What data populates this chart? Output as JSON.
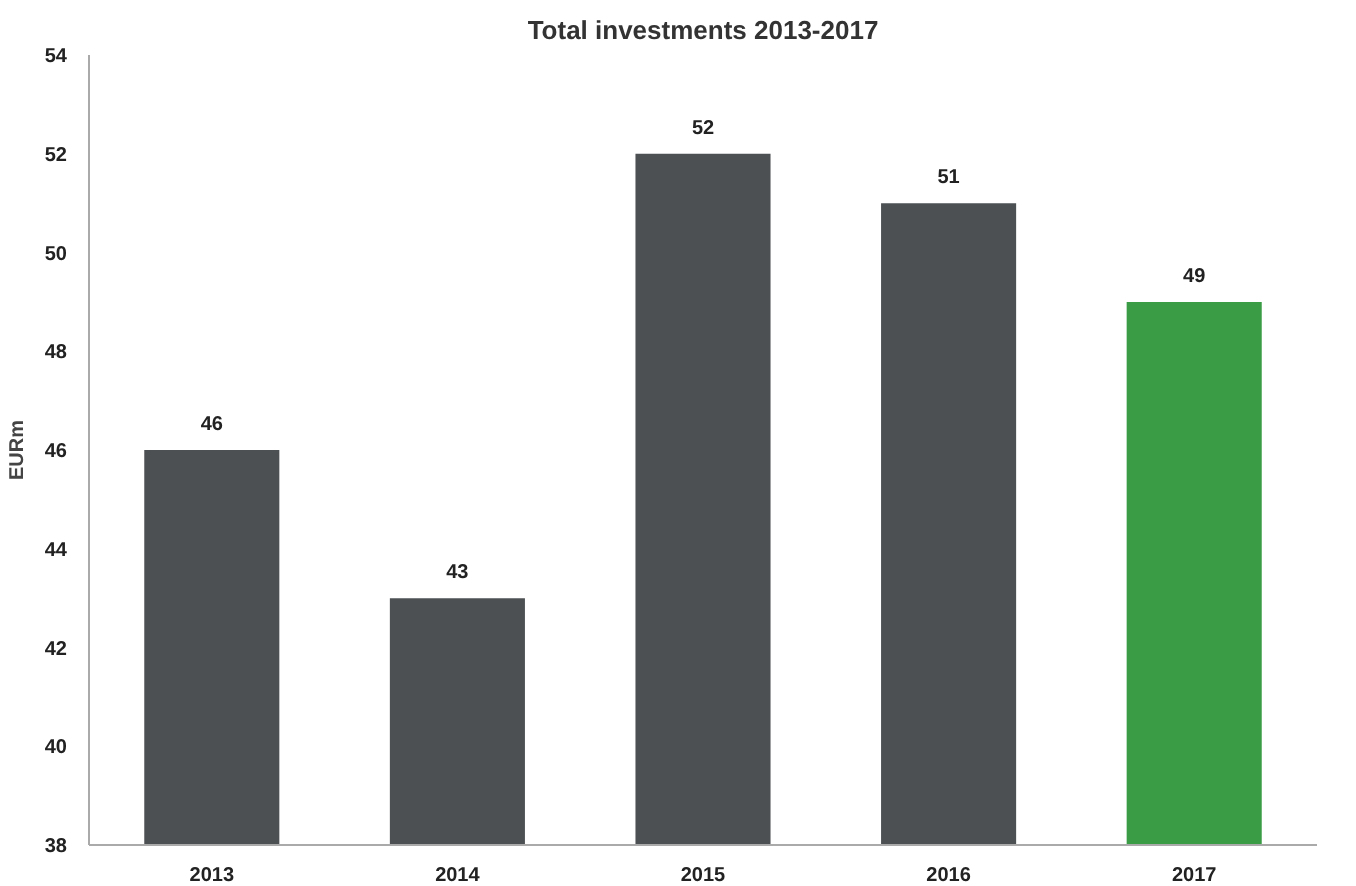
{
  "chart_data": {
    "type": "bar",
    "title": "Total investments 2013-2017",
    "ylabel": "EURm",
    "categories": [
      "2013",
      "2014",
      "2015",
      "2016",
      "2017"
    ],
    "values": [
      46,
      43,
      52,
      51,
      49
    ],
    "colors": [
      "#4d5053",
      "#4d5053",
      "#4d5053",
      "#4d5053",
      "#3a9d46"
    ],
    "ylim": [
      38,
      54
    ],
    "yticks": [
      38,
      40,
      42,
      44,
      46,
      48,
      50,
      52,
      54
    ],
    "data_labels": true,
    "grid": false
  }
}
